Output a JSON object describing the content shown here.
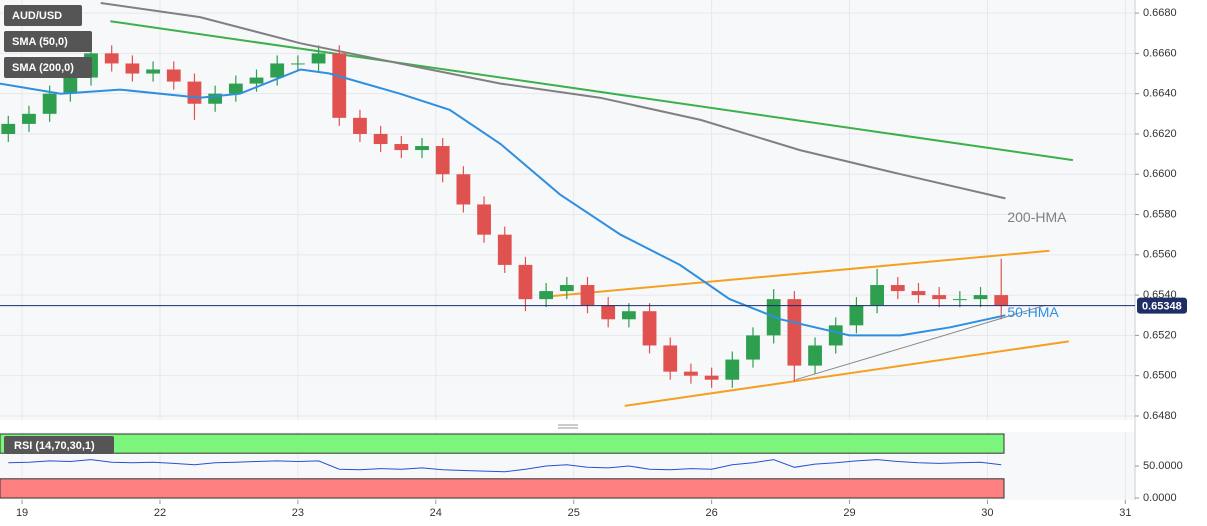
{
  "chart_data": {
    "type": "candlestick",
    "legend": [
      "AUD/USD",
      "SMA (50,0)",
      "SMA (200,0)"
    ],
    "xlim": [
      -0.16,
      8.07
    ],
    "xticks": [
      {
        "value": 0,
        "label": "19"
      },
      {
        "value": 1,
        "label": "22"
      },
      {
        "value": 2,
        "label": "23"
      },
      {
        "value": 3,
        "label": "24"
      },
      {
        "value": 4,
        "label": "25"
      },
      {
        "value": 5,
        "label": "26"
      },
      {
        "value": 6,
        "label": "29"
      },
      {
        "value": 7,
        "label": "30"
      },
      {
        "value": 8,
        "label": "31"
      }
    ],
    "ylim": [
      0.6478,
      0.66865
    ],
    "yticks": [
      {
        "value": 0.648,
        "label": "0.6480"
      },
      {
        "value": 0.65,
        "label": "0.6500"
      },
      {
        "value": 0.652,
        "label": "0.6520"
      },
      {
        "value": 0.654,
        "label": "0.6540"
      },
      {
        "value": 0.656,
        "label": "0.6560"
      },
      {
        "value": 0.658,
        "label": "0.6580"
      },
      {
        "value": 0.66,
        "label": "0.6600"
      },
      {
        "value": 0.662,
        "label": "0.6620"
      },
      {
        "value": 0.664,
        "label": "0.6640"
      },
      {
        "value": 0.666,
        "label": "0.6660"
      },
      {
        "value": 0.668,
        "label": "0.6680"
      }
    ],
    "grid": true,
    "up_color": "#2e9e4f",
    "down_color": "#e0524f",
    "candles": {
      "x": [
        -0.1,
        0.05,
        0.2,
        0.35,
        0.5,
        0.65,
        0.8,
        0.95,
        1.1,
        1.25,
        1.4,
        1.55,
        1.7,
        1.85,
        2.0,
        2.15,
        2.3,
        2.45,
        2.6,
        2.75,
        2.9,
        3.05,
        3.2,
        3.35,
        3.5,
        3.65,
        3.8,
        3.95,
        4.1,
        4.25,
        4.4,
        4.55,
        4.7,
        4.85,
        5.0,
        5.15,
        5.3,
        5.45,
        5.6,
        5.75,
        5.9,
        6.05,
        6.2,
        6.35,
        6.5,
        6.65,
        6.8,
        6.95,
        7.1
      ],
      "open": [
        0.662,
        0.6625,
        0.663,
        0.664,
        0.6648,
        0.666,
        0.6655,
        0.665,
        0.6652,
        0.6646,
        0.6635,
        0.664,
        0.6645,
        0.6648,
        0.6655,
        0.6655,
        0.666,
        0.6628,
        0.662,
        0.6615,
        0.6612,
        0.6614,
        0.66,
        0.6585,
        0.657,
        0.6555,
        0.6538,
        0.6542,
        0.6545,
        0.6535,
        0.6528,
        0.6532,
        0.6515,
        0.6502,
        0.65,
        0.6498,
        0.6508,
        0.652,
        0.6538,
        0.6505,
        0.6515,
        0.6525,
        0.6535,
        0.6545,
        0.6542,
        0.654,
        0.6538,
        0.6538,
        0.654
      ],
      "high": [
        0.6629,
        0.6634,
        0.6644,
        0.6652,
        0.667,
        0.6664,
        0.6659,
        0.6656,
        0.6656,
        0.665,
        0.6644,
        0.6649,
        0.6652,
        0.6659,
        0.6659,
        0.6664,
        0.6664,
        0.6632,
        0.6624,
        0.6619,
        0.6618,
        0.6618,
        0.6604,
        0.6589,
        0.6574,
        0.6559,
        0.6546,
        0.6549,
        0.6549,
        0.6539,
        0.6536,
        0.6536,
        0.6519,
        0.6506,
        0.6504,
        0.6512,
        0.6524,
        0.6543,
        0.6542,
        0.6519,
        0.6529,
        0.6539,
        0.6553,
        0.6549,
        0.6546,
        0.6544,
        0.6542,
        0.6544,
        0.6558
      ],
      "low": [
        0.6616,
        0.6621,
        0.6626,
        0.6636,
        0.6644,
        0.6651,
        0.6646,
        0.6646,
        0.6642,
        0.6627,
        0.6631,
        0.6636,
        0.6641,
        0.6644,
        0.6651,
        0.6651,
        0.6624,
        0.6616,
        0.6611,
        0.6608,
        0.6608,
        0.6596,
        0.6581,
        0.6566,
        0.6551,
        0.6532,
        0.6534,
        0.6538,
        0.6531,
        0.6524,
        0.6524,
        0.6511,
        0.6498,
        0.6496,
        0.6494,
        0.6494,
        0.6504,
        0.6516,
        0.6497,
        0.6501,
        0.6511,
        0.6521,
        0.6531,
        0.6538,
        0.6536,
        0.6534,
        0.6534,
        0.6534,
        0.6528
      ],
      "close": [
        0.6625,
        0.663,
        0.664,
        0.6648,
        0.666,
        0.6655,
        0.665,
        0.6652,
        0.6646,
        0.6635,
        0.664,
        0.6645,
        0.6648,
        0.6655,
        0.6655,
        0.666,
        0.6628,
        0.662,
        0.6615,
        0.6612,
        0.6614,
        0.66,
        0.6585,
        0.657,
        0.6555,
        0.6538,
        0.6542,
        0.6545,
        0.6535,
        0.6528,
        0.6532,
        0.6515,
        0.6502,
        0.65,
        0.6498,
        0.6508,
        0.652,
        0.6538,
        0.6505,
        0.6515,
        0.6525,
        0.6535,
        0.6545,
        0.6542,
        0.654,
        0.6538,
        0.6538,
        0.654,
        0.6535
      ]
    },
    "series": [
      {
        "name": "50-HMA",
        "color": "#2e8fe0",
        "x": [
          -0.16,
          0.28,
          0.71,
          1.29,
          1.58,
          2.02,
          2.23,
          2.74,
          3.1,
          3.47,
          3.9,
          4.34,
          4.77,
          5.13,
          5.5,
          6.0,
          6.37,
          6.73,
          7.13
        ],
        "values": [
          0.6645,
          0.664,
          0.6642,
          0.6638,
          0.664,
          0.6652,
          0.665,
          0.664,
          0.6632,
          0.6615,
          0.659,
          0.657,
          0.6555,
          0.6538,
          0.6528,
          0.652,
          0.652,
          0.6524,
          0.653
        ]
      },
      {
        "name": "200-HMA",
        "color": "#808080",
        "x": [
          0.57,
          1.29,
          2.02,
          2.74,
          3.47,
          4.19,
          4.92,
          5.64,
          6.37,
          7.13
        ],
        "values": [
          0.6685,
          0.6678,
          0.6665,
          0.6655,
          0.6645,
          0.6638,
          0.6627,
          0.6612,
          0.66,
          0.6588
        ]
      }
    ],
    "trendlines": [
      {
        "color": "#3cb04a",
        "x": [
          0.64,
          7.62
        ],
        "values": [
          0.6676,
          0.6607
        ]
      },
      {
        "color": "#f5a020",
        "x": [
          3.76,
          7.45
        ],
        "values": [
          0.6539,
          0.6562
        ]
      },
      {
        "color": "#f5a020",
        "x": [
          4.37,
          7.59
        ],
        "values": [
          0.6485,
          0.6517
        ]
      },
      {
        "color": "#8a8a8a",
        "x": [
          5.61,
          7.42
        ],
        "values": [
          0.6498,
          0.6535
        ]
      }
    ],
    "last_price": 0.65348,
    "rsi": {
      "title": "RSI (14,70,30,1)",
      "ylim": [
        0,
        100
      ],
      "yticks": [
        {
          "value": 50,
          "label": "50.0000"
        },
        {
          "value": 0,
          "label": "0.0000"
        }
      ],
      "overbought": 70,
      "oversold": 30,
      "color": "#2a4fd6",
      "values": [
        55,
        56,
        58,
        57,
        60,
        56,
        55,
        56,
        54,
        52,
        55,
        56,
        57,
        58,
        57,
        58,
        45,
        44,
        46,
        45,
        47,
        44,
        43,
        42,
        41,
        45,
        50,
        52,
        48,
        47,
        50,
        45,
        44,
        46,
        45,
        52,
        55,
        60,
        48,
        53,
        55,
        58,
        60,
        57,
        55,
        54,
        55,
        56,
        52
      ]
    }
  }
}
